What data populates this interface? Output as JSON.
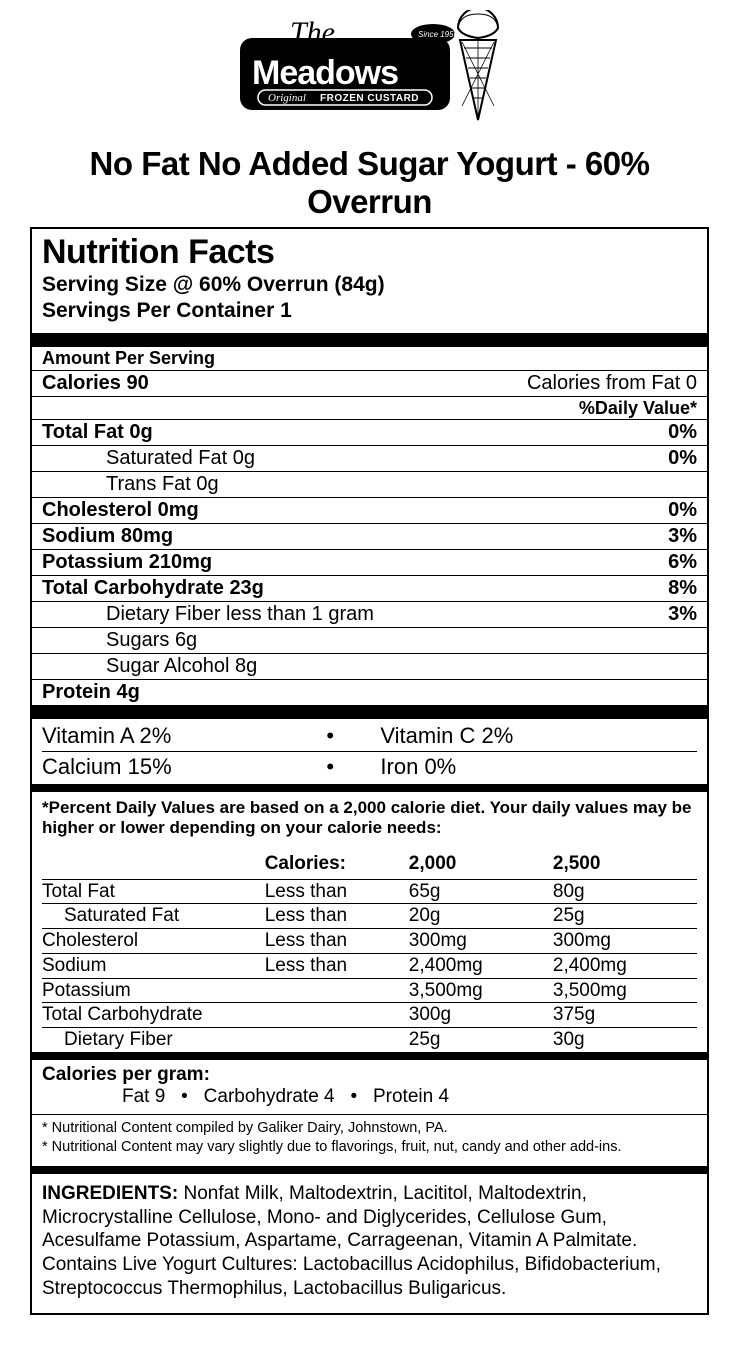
{
  "logo": {
    "brand_top": "The",
    "brand_main": "Meadows",
    "tagline_left": "Original",
    "tagline_right": "FROZEN CUSTARD",
    "since": "Since 1950",
    "colors": {
      "bg": "#000000",
      "fg": "#ffffff"
    }
  },
  "product_title": "No Fat No Added Sugar Yogurt - 60% Overrun",
  "nf": {
    "title": "Nutrition Facts",
    "serving_size": "Serving Size @ 60% Overrun (84g)",
    "servings_per": "Servings Per Container 1",
    "amount_per": "Amount Per Serving",
    "calories_label": "Calories",
    "calories_value": "90",
    "calories_fat_label": "Calories from Fat",
    "calories_fat_value": "0",
    "dv_header": "%Daily Value*",
    "rows": {
      "total_fat": {
        "label": "Total Fat",
        "value": "0g",
        "dv": "0%"
      },
      "sat_fat": {
        "label": "Saturated Fat",
        "value": "0g",
        "dv": "0%"
      },
      "trans_fat": {
        "label": "Trans Fat",
        "value": "0g",
        "dv": ""
      },
      "cholesterol": {
        "label": "Cholesterol",
        "value": "0mg",
        "dv": "0%"
      },
      "sodium": {
        "label": "Sodium",
        "value": "80mg",
        "dv": "3%"
      },
      "potassium": {
        "label": "Potassium",
        "value": "210mg",
        "dv": "6%"
      },
      "carb": {
        "label": "Total Carbohydrate",
        "value": "23g",
        "dv": "8%"
      },
      "fiber": {
        "label": "Dietary Fiber",
        "value": "less than 1 gram",
        "dv": "3%"
      },
      "sugars": {
        "label": "Sugars",
        "value": "6g",
        "dv": ""
      },
      "sugar_alc": {
        "label": "Sugar Alcohol",
        "value": "8g",
        "dv": ""
      },
      "protein": {
        "label": "Protein",
        "value": "4g",
        "dv": ""
      }
    },
    "vitamins": {
      "a": {
        "label": "Vitamin A",
        "value": "2%"
      },
      "c": {
        "label": "Vitamin C",
        "value": "2%"
      },
      "calcium": {
        "label": "Calcium",
        "value": "15%"
      },
      "iron": {
        "label": "Iron",
        "value": "0%"
      }
    },
    "footnote": "*Percent Daily Values are based on a 2,000 calorie diet. Your daily values may be higher or lower depending on your calorie needs:",
    "dv_table": {
      "header": {
        "calories": "Calories:",
        "c2000": "2,000",
        "c2500": "2,500"
      },
      "rows": [
        {
          "name": "Total Fat",
          "qual": "Less than",
          "v2000": "65g",
          "v2500": "80g",
          "indent": false
        },
        {
          "name": "Saturated Fat",
          "qual": "Less than",
          "v2000": "20g",
          "v2500": "25g",
          "indent": true
        },
        {
          "name": "Cholesterol",
          "qual": "Less than",
          "v2000": "300mg",
          "v2500": "300mg",
          "indent": false
        },
        {
          "name": "Sodium",
          "qual": "Less than",
          "v2000": "2,400mg",
          "v2500": "2,400mg",
          "indent": false
        },
        {
          "name": "Potassium",
          "qual": "",
          "v2000": "3,500mg",
          "v2500": "3,500mg",
          "indent": false
        },
        {
          "name": "Total Carbohydrate",
          "qual": "",
          "v2000": "300g",
          "v2500": "375g",
          "indent": false
        },
        {
          "name": "Dietary Fiber",
          "qual": "",
          "v2000": "25g",
          "v2500": "30g",
          "indent": true
        }
      ]
    },
    "cpg": {
      "title": "Calories per gram:",
      "fat": "Fat 9",
      "carb": "Carbohydrate 4",
      "protein": "Protein 4",
      "dot": "•"
    },
    "notes": [
      "* Nutritional Content compiled by Galiker Dairy, Johnstown, PA.",
      "* Nutritional Content may vary slightly due to flavorings, fruit, nut, candy and other add-ins."
    ],
    "ingredients_label": "INGREDIENTS:",
    "ingredients_text": "Nonfat Milk, Maltodextrin, Lacititol, Maltodextrin, Microcrystalline Cellulose, Mono- and Diglycerides, Cellulose Gum, Acesulfame Potassium, Aspartame, Carrageenan, Vitamin A Palmitate.  Contains Live Yogurt Cultures: Lactobacillus Acidophilus, Bifidobacterium, Streptococcus Thermophilus, Lactobacillus Buligaricus."
  }
}
